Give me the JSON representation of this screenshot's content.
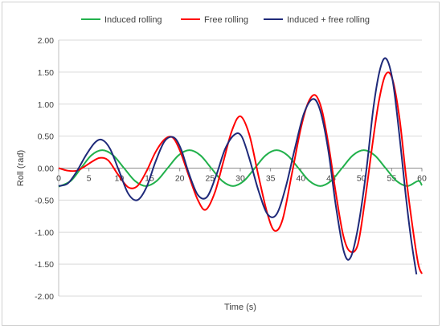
{
  "chart_data": {
    "type": "line",
    "title": "",
    "xlabel": "Time (s)",
    "ylabel": "Roll (rad)",
    "xlim": [
      0,
      60
    ],
    "ylim": [
      -2.0,
      2.0
    ],
    "x_ticks": [
      0,
      5,
      10,
      15,
      20,
      25,
      30,
      35,
      40,
      45,
      50,
      55,
      60
    ],
    "x_tick_labels": [
      "0",
      "5",
      "10",
      "15",
      "20",
      "25",
      "30",
      "35",
      "40",
      "45",
      "50",
      "55",
      "60"
    ],
    "y_ticks": [
      -2.0,
      -1.5,
      -1.0,
      -0.5,
      0.0,
      0.5,
      1.0,
      1.5,
      2.0
    ],
    "y_tick_labels": [
      "-2.00",
      "-1.50",
      "-1.00",
      "-0.50",
      "0.00",
      "0.50",
      "1.00",
      "1.50",
      "2.00"
    ],
    "grid": "horizontal",
    "legend_position": "top",
    "series": [
      {
        "name": "Induced rolling",
        "color": "#22b14c",
        "x": [
          0,
          2,
          3.7,
          5.4,
          7.2,
          9,
          10.8,
          12.6,
          14.4,
          16.2,
          18,
          19.8,
          21.6,
          23.4,
          25.2,
          27,
          28.8,
          30.6,
          32.4,
          34.2,
          36,
          37.8,
          39.6,
          41.4,
          43.2,
          45,
          46.8,
          48.6,
          50.4,
          52.2,
          54,
          55.8,
          57.6,
          59.4,
          60
        ],
        "y": [
          -0.29,
          -0.2,
          0.0,
          0.2,
          0.28,
          0.2,
          0.0,
          -0.2,
          -0.28,
          -0.2,
          0.0,
          0.2,
          0.28,
          0.2,
          0.0,
          -0.2,
          -0.28,
          -0.2,
          0.0,
          0.2,
          0.28,
          0.2,
          0.0,
          -0.2,
          -0.28,
          -0.2,
          0.0,
          0.2,
          0.28,
          0.2,
          0.0,
          -0.2,
          -0.28,
          -0.2,
          -0.27
        ]
      },
      {
        "name": "Free rolling",
        "color": "#ff0000",
        "x": [
          0,
          1.5,
          3,
          4.2,
          5.5,
          6.8,
          8.2,
          9.8,
          11.5,
          13,
          14.5,
          16,
          17.5,
          18.8,
          20,
          21.5,
          23,
          24.3,
          25.8,
          27.2,
          28.6,
          30,
          31.5,
          33,
          34.5,
          35.7,
          37,
          38.5,
          40,
          41.2,
          42.4,
          43.5,
          44.6,
          45.8,
          47,
          48.1,
          49.4,
          50.6,
          51.8,
          52.9,
          54,
          55.1,
          56.3,
          57.4,
          58.5,
          59.4,
          60
        ],
        "y": [
          0.0,
          -0.04,
          -0.04,
          0.02,
          0.1,
          0.16,
          0.12,
          -0.1,
          -0.3,
          -0.28,
          -0.05,
          0.25,
          0.45,
          0.48,
          0.28,
          -0.12,
          -0.5,
          -0.65,
          -0.38,
          0.1,
          0.58,
          0.81,
          0.52,
          -0.12,
          -0.72,
          -0.98,
          -0.8,
          -0.1,
          0.62,
          1.02,
          1.14,
          0.9,
          0.35,
          -0.4,
          -1.05,
          -1.3,
          -1.2,
          -0.5,
          0.35,
          1.05,
          1.46,
          1.4,
          0.78,
          -0.15,
          -0.95,
          -1.5,
          -1.65
        ]
      },
      {
        "name": "Induced + free rolling",
        "color": "#1f2a7a",
        "x": [
          0,
          1.5,
          3,
          4.5,
          6,
          7.2,
          8.5,
          10,
          11.5,
          13,
          14.5,
          16,
          17.5,
          19,
          20.2,
          21.5,
          23,
          24.5,
          26,
          27.5,
          29,
          30.2,
          31.5,
          33,
          34.5,
          36,
          37.5,
          39,
          40.5,
          42,
          43.2,
          44.5,
          45.8,
          47.1,
          48.2,
          49.5,
          50.8,
          52,
          53.1,
          54.1,
          55.2,
          56.3,
          57.3,
          58.2,
          59.1
        ],
        "y": [
          -0.28,
          -0.24,
          -0.05,
          0.2,
          0.4,
          0.44,
          0.3,
          -0.05,
          -0.4,
          -0.5,
          -0.3,
          0.1,
          0.42,
          0.48,
          0.3,
          -0.08,
          -0.42,
          -0.45,
          -0.12,
          0.3,
          0.52,
          0.5,
          0.15,
          -0.35,
          -0.72,
          -0.72,
          -0.3,
          0.3,
          0.85,
          1.08,
          0.9,
          0.3,
          -0.6,
          -1.3,
          -1.4,
          -0.9,
          -0.05,
          0.95,
          1.55,
          1.71,
          1.35,
          0.5,
          -0.4,
          -1.1,
          -1.66
        ]
      }
    ]
  }
}
